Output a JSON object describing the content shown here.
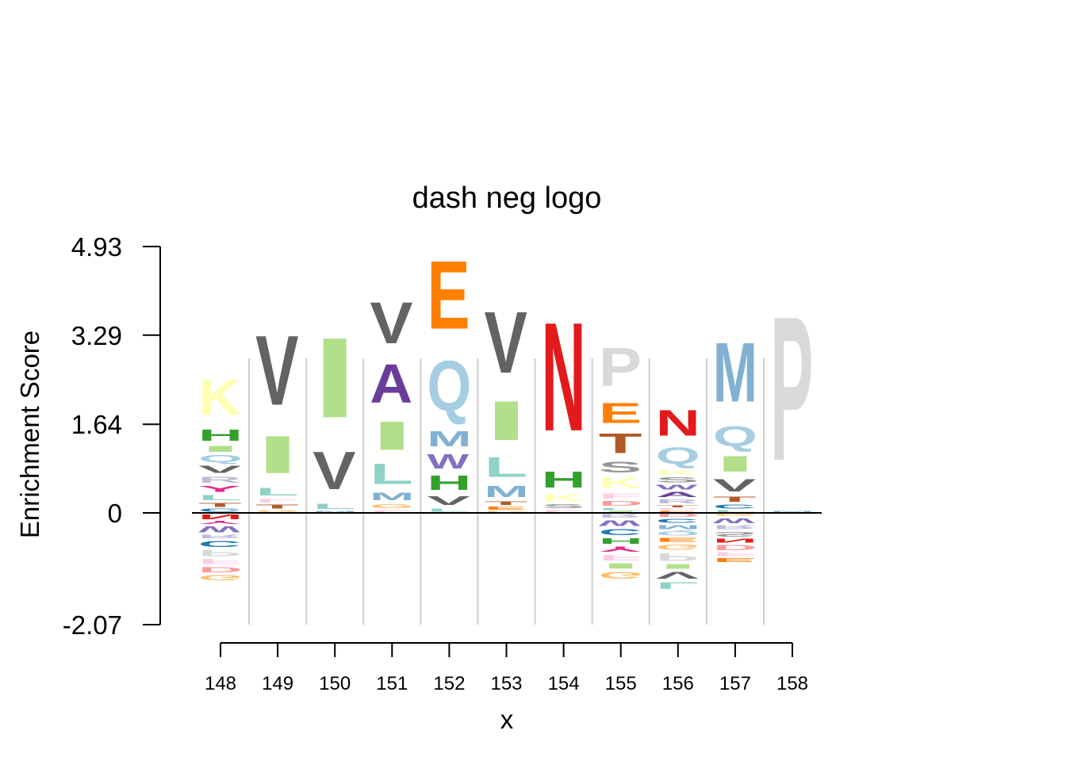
{
  "chart_data": {
    "type": "sequence-logo",
    "title": "dash neg logo",
    "xlabel": "x",
    "ylabel": "Enrichment Score",
    "ylim": [
      -2.07,
      4.93
    ],
    "yticks": [
      "4.93",
      "3.29",
      "1.64",
      "0",
      "-2.07"
    ],
    "grid": false,
    "legend": "none",
    "palette": {
      "A": "#6a3d9a",
      "C": "#1f78b4",
      "D": "#fb9a99",
      "E": "#ff7f00",
      "F": "#fccde5",
      "G": "#fdbf6f",
      "H": "#33a02c",
      "I": "#b2df8a",
      "K": "#ffffb3",
      "L": "#8dd3c7",
      "M": "#80b1d3",
      "N": "#e31a1c",
      "P": "#d9d9d9",
      "Q": "#a6cee3",
      "R": "#bebada",
      "S": "#969696",
      "T": "#b15928",
      "V": "#636363",
      "W": "#8470c0",
      "Y": "#e7298a"
    },
    "positions": [
      {
        "x": "148",
        "pos": [
          [
            "K",
            1.0
          ],
          [
            "H",
            0.32
          ],
          [
            "I",
            0.17
          ],
          [
            "Q",
            0.2
          ],
          [
            "V",
            0.2
          ],
          [
            "R",
            0.17
          ],
          [
            "Y",
            0.17
          ],
          [
            "L",
            0.15
          ],
          [
            "T",
            0.12
          ],
          [
            "C",
            0.08
          ]
        ],
        "neg": [
          [
            "N",
            0.13
          ],
          [
            "Y",
            0.08
          ],
          [
            "W",
            0.17
          ],
          [
            "R",
            0.1
          ],
          [
            "C",
            0.17
          ],
          [
            "P",
            0.17
          ],
          [
            "F",
            0.15
          ],
          [
            "D",
            0.15
          ],
          [
            "G",
            0.15
          ]
        ]
      },
      {
        "x": "149",
        "pos": [
          [
            "V",
            1.95
          ],
          [
            "I",
            1.05
          ],
          [
            "L",
            0.22
          ],
          [
            "F",
            0.1
          ],
          [
            "T",
            0.12
          ],
          [
            "G",
            0.05
          ]
        ],
        "neg": []
      },
      {
        "x": "150",
        "pos": [
          [
            "I",
            2.25
          ],
          [
            "V",
            1.05
          ],
          [
            "L",
            0.15
          ],
          [
            "M",
            0.04
          ]
        ],
        "neg": []
      },
      {
        "x": "151",
        "pos": [
          [
            "V",
            1.16
          ],
          [
            "A",
            1.09
          ],
          [
            "I",
            0.8
          ],
          [
            "L",
            0.58
          ],
          [
            "M",
            0.22
          ],
          [
            "G",
            0.12
          ],
          [
            "F",
            0.06
          ]
        ],
        "neg": []
      },
      {
        "x": "152",
        "pos": [
          [
            "E",
            1.91
          ],
          [
            "Q",
            1.4
          ],
          [
            "M",
            0.43
          ],
          [
            "W",
            0.4
          ],
          [
            "H",
            0.4
          ],
          [
            "V",
            0.24
          ],
          [
            "L",
            0.09
          ]
        ],
        "neg": []
      },
      {
        "x": "153",
        "pos": [
          [
            "V",
            1.72
          ],
          [
            "I",
            1.1
          ],
          [
            "L",
            0.55
          ],
          [
            "M",
            0.32
          ],
          [
            "T",
            0.1
          ],
          [
            "E",
            0.08
          ],
          [
            "G",
            0.04
          ]
        ],
        "neg": []
      },
      {
        "x": "154",
        "pos": [
          [
            "N",
            3.05
          ],
          [
            "H",
            0.45
          ],
          [
            "K",
            0.18
          ],
          [
            "S",
            0.12
          ],
          [
            "F",
            0.06
          ]
        ],
        "neg": []
      },
      {
        "x": "155",
        "pos": [
          [
            "P",
            1.08
          ],
          [
            "E",
            0.56
          ],
          [
            "T",
            0.55
          ],
          [
            "S",
            0.3
          ],
          [
            "K",
            0.3
          ],
          [
            "F",
            0.15
          ],
          [
            "D",
            0.13
          ],
          [
            "L",
            0.06
          ],
          [
            "I",
            0.04
          ]
        ],
        "neg": [
          [
            "R",
            0.1
          ],
          [
            "W",
            0.16
          ],
          [
            "C",
            0.17
          ],
          [
            "H",
            0.16
          ],
          [
            "Y",
            0.15
          ],
          [
            "F",
            0.16
          ],
          [
            "I",
            0.15
          ],
          [
            "G",
            0.18
          ]
        ]
      },
      {
        "x": "156",
        "pos": [
          [
            "N",
            0.72
          ],
          [
            "Q",
            0.46
          ],
          [
            "K",
            0.13
          ],
          [
            "S",
            0.14
          ],
          [
            "W",
            0.13
          ],
          [
            "A",
            0.14
          ],
          [
            "R",
            0.11
          ],
          [
            "T",
            0.06
          ],
          [
            "F",
            0.05
          ],
          [
            "E",
            0.04
          ]
        ],
        "neg": [
          [
            "D",
            0.08
          ],
          [
            "C",
            0.12
          ],
          [
            "M",
            0.12
          ],
          [
            "Q",
            0.12
          ],
          [
            "E",
            0.11
          ],
          [
            "G",
            0.15
          ],
          [
            "P",
            0.22
          ],
          [
            "I",
            0.13
          ],
          [
            "V",
            0.19
          ],
          [
            "L",
            0.18
          ]
        ]
      },
      {
        "x": "157",
        "pos": [
          [
            "M",
            1.67
          ],
          [
            "Q",
            0.57
          ],
          [
            "I",
            0.44
          ],
          [
            "V",
            0.35
          ],
          [
            "T",
            0.14
          ],
          [
            "C",
            0.12
          ],
          [
            "L",
            0.05
          ]
        ],
        "neg": [
          [
            "G",
            0.07
          ],
          [
            "W",
            0.13
          ],
          [
            "R",
            0.12
          ],
          [
            "S",
            0.13
          ],
          [
            "N",
            0.11
          ],
          [
            "D",
            0.14
          ],
          [
            "F",
            0.11
          ],
          [
            "E",
            0.11
          ]
        ]
      },
      {
        "x": "158",
        "pos": [
          [
            "P",
            4.05
          ],
          [
            "M",
            0.02
          ],
          [
            "V",
            0.01
          ]
        ],
        "neg": []
      }
    ]
  }
}
